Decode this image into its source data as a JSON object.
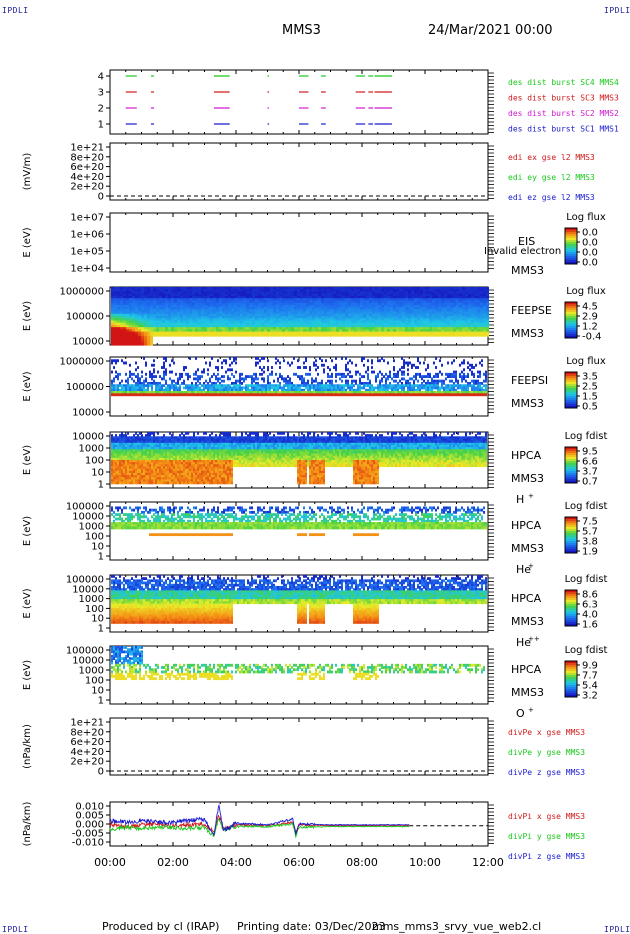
{
  "corner_logo": "IPDLI",
  "header": {
    "mission": "MMS3",
    "date": "24/Mar/2021 00:00"
  },
  "footer": {
    "produced_by": "Produced by cl (IRAP)",
    "printing_date": "Printing date: 03/Dec/2023",
    "filename": "mms_mms3_srvy_vue_web2.cl"
  },
  "colors": {
    "mms1": "#1a1ad0",
    "mms2": "#d01ad0",
    "mms3": "#d01a1a",
    "mms4": "#1ac81a",
    "x": "#d01a1a",
    "y": "#1ac81a",
    "z": "#1a1ad0"
  },
  "chart_data": [
    {
      "type": "line",
      "panel": "burst-availability",
      "ylim": [
        0.5,
        4.5
      ],
      "yticks": [
        "1",
        "2",
        "3",
        "4"
      ],
      "ylabel": "",
      "series": [
        {
          "name": "des dist burst SC1 MMS1",
          "level": 1,
          "intervals_hours": [
            [
              0.5,
              0.85
            ],
            [
              1.3,
              1.4
            ],
            [
              3.3,
              3.8
            ],
            [
              5.0,
              5.05
            ],
            [
              6.0,
              6.3
            ],
            [
              6.7,
              6.85
            ],
            [
              7.8,
              8.1
            ],
            [
              8.2,
              8.35
            ],
            [
              8.4,
              8.95
            ]
          ]
        },
        {
          "name": "des dist burst SC2 MMS2",
          "level": 2,
          "intervals_hours": [
            [
              0.5,
              0.85
            ],
            [
              1.3,
              1.4
            ],
            [
              3.3,
              3.8
            ],
            [
              5.0,
              5.05
            ],
            [
              6.0,
              6.3
            ],
            [
              6.7,
              6.85
            ],
            [
              7.8,
              8.1
            ],
            [
              8.2,
              8.35
            ],
            [
              8.4,
              8.95
            ]
          ]
        },
        {
          "name": "des dist burst SC3 MMS3",
          "level": 3,
          "intervals_hours": [
            [
              0.5,
              0.85
            ],
            [
              1.3,
              1.4
            ],
            [
              3.3,
              3.8
            ],
            [
              5.0,
              5.05
            ],
            [
              6.0,
              6.3
            ],
            [
              6.7,
              6.85
            ],
            [
              7.8,
              8.1
            ],
            [
              8.2,
              8.35
            ],
            [
              8.4,
              8.95
            ]
          ]
        },
        {
          "name": "des dist burst SC4 MMS4",
          "level": 4,
          "intervals_hours": [
            [
              0.5,
              0.85
            ],
            [
              1.3,
              1.4
            ],
            [
              3.3,
              3.8
            ],
            [
              5.0,
              5.05
            ],
            [
              6.0,
              6.3
            ],
            [
              6.7,
              6.85
            ],
            [
              7.8,
              8.1
            ],
            [
              8.2,
              8.35
            ],
            [
              8.4,
              8.95
            ]
          ]
        }
      ]
    },
    {
      "type": "line",
      "panel": "edi-e-field",
      "ylabel": "(mV/m)",
      "yticks": [
        "1e+21",
        "8e+20",
        "6e+20",
        "4e+20",
        "2e+20",
        "0"
      ],
      "ylim": [
        -1e+20,
        1.1e+21
      ],
      "zero_line": true,
      "series": [
        {
          "name": "edi ex gse l2 MMS3",
          "values": []
        },
        {
          "name": "edi ey gse l2 MMS3",
          "values": []
        },
        {
          "name": "edi ez gse l2 MMS3",
          "values": []
        }
      ]
    },
    {
      "type": "heatmap",
      "panel": "eis",
      "ylabel": "E (eV)",
      "ytype": "log",
      "yticks": [
        "1e+07",
        "1e+06",
        "1e+05",
        "1e+04"
      ],
      "instrument": "EIS",
      "spacecraft": "MMS3",
      "note": "Invalid electron to",
      "colorbar": {
        "title": "Log flux",
        "ticks": [
          "0.0",
          "0.0",
          "0.0",
          "0.0"
        ]
      },
      "values": []
    },
    {
      "type": "heatmap",
      "panel": "feeps-electron",
      "ylabel": "E (eV)",
      "ytype": "log",
      "yticks": [
        "1000000",
        "100000",
        "10000"
      ],
      "instrument": "FEEPSE",
      "spacecraft": "MMS3",
      "colorbar": {
        "title": "Log flux",
        "ticks": [
          "4.5",
          "2.9",
          "1.2",
          "-0.4"
        ],
        "range": [
          -0.4,
          4.5
        ]
      },
      "band_profile": {
        "top": 1.0,
        "mid": 1.9,
        "low": 3.2,
        "floor": 4.3
      },
      "early_enhancement_hours": [
        0.0,
        1.3
      ]
    },
    {
      "type": "heatmap",
      "panel": "feeps-ion",
      "ylabel": "E (eV)",
      "ytype": "log",
      "yticks": [
        "1000000",
        "100000",
        "10000"
      ],
      "instrument": "FEEPSI",
      "spacecraft": "MMS3",
      "colorbar": {
        "title": "Log flux",
        "ticks": [
          "3.5",
          "2.5",
          "1.5",
          "0.5"
        ],
        "range": [
          0.5,
          3.5
        ]
      }
    },
    {
      "type": "heatmap",
      "panel": "hpca-h",
      "ylabel": "E (eV)",
      "ytype": "log",
      "yticks": [
        "10000",
        "1000",
        "100",
        "10",
        "1"
      ],
      "instrument": "HPCA",
      "spacecraft": "MMS3",
      "species": "H",
      "species_charge": "+",
      "colorbar": {
        "title": "Log fdist",
        "ticks": [
          "9.5",
          "6.6",
          "3.7",
          "0.7"
        ],
        "range": [
          0.7,
          9.5
        ]
      }
    },
    {
      "type": "heatmap",
      "panel": "hpca-he+",
      "ylabel": "E (eV)",
      "ytype": "log",
      "yticks": [
        "100000",
        "10000",
        "1000",
        "100",
        "10",
        "1"
      ],
      "instrument": "HPCA",
      "spacecraft": "MMS3",
      "species": "He",
      "species_charge": "+",
      "colorbar": {
        "title": "Log fdist",
        "ticks": [
          "7.5",
          "5.7",
          "3.8",
          "1.9"
        ],
        "range": [
          1.9,
          7.5
        ]
      }
    },
    {
      "type": "heatmap",
      "panel": "hpca-he++",
      "ylabel": "E (eV)",
      "ytype": "log",
      "yticks": [
        "100000",
        "10000",
        "1000",
        "100",
        "10",
        "1"
      ],
      "instrument": "HPCA",
      "spacecraft": "MMS3",
      "species": "He",
      "species_charge": "++",
      "colorbar": {
        "title": "Log fdist",
        "ticks": [
          "8.6",
          "6.3",
          "4.0",
          "1.6"
        ],
        "range": [
          1.6,
          8.6
        ]
      }
    },
    {
      "type": "heatmap",
      "panel": "hpca-o",
      "ylabel": "E (eV)",
      "ytype": "log",
      "yticks": [
        "100000",
        "10000",
        "1000",
        "100",
        "10",
        "1"
      ],
      "instrument": "HPCA",
      "spacecraft": "MMS3",
      "species": "O",
      "species_charge": "+",
      "colorbar": {
        "title": "Log fdist",
        "ticks": [
          "9.9",
          "7.7",
          "5.4",
          "3.2"
        ],
        "range": [
          3.2,
          9.9
        ]
      }
    },
    {
      "type": "line",
      "panel": "divpe",
      "ylabel": "(nPa/km)",
      "yticks": [
        "1e+21",
        "8e+20",
        "6e+20",
        "4e+20",
        "2e+20",
        "0"
      ],
      "ylim": [
        -1e+20,
        1.1e+21
      ],
      "zero_line": true,
      "series": [
        {
          "name": "divPe x gse MMS3",
          "values": []
        },
        {
          "name": "divPe y gse MMS3",
          "values": []
        },
        {
          "name": "divPe z gse MMS3",
          "values": []
        }
      ]
    },
    {
      "type": "line",
      "panel": "divpi",
      "ylabel": "(nPa/km)",
      "yticks": [
        "0.010",
        "0.005",
        "0.000",
        "-0.005",
        "-0.010"
      ],
      "ylim": [
        -0.012,
        0.014
      ],
      "zero_line": true,
      "data_end_hour": 9.5,
      "series": [
        {
          "name": "divPi x gse MMS3",
          "x": [
            0,
            0.5,
            1,
            1.5,
            2,
            2.5,
            3,
            3.3,
            3.45,
            3.6,
            4,
            5,
            5.8,
            5.9,
            6,
            7,
            8,
            9,
            9.5
          ],
          "values": [
            0.001,
            -0.001,
            0.0005,
            0.001,
            0,
            0.0005,
            0.001,
            -0.004,
            0.006,
            -0.002,
            0.0005,
            0,
            0.002,
            -0.004,
            0.0005,
            0,
            0,
            0,
            0
          ]
        },
        {
          "name": "divPi y gse MMS3",
          "x": [
            0,
            0.5,
            1,
            1.5,
            2,
            2.5,
            3,
            3.3,
            3.45,
            3.6,
            4,
            5,
            5.8,
            5.9,
            6,
            7,
            8,
            9,
            9.5
          ],
          "values": [
            -0.002,
            -0.001,
            -0.0015,
            -0.001,
            -0.001,
            -0.0015,
            -0.001,
            -0.006,
            0.004,
            -0.003,
            -0.0005,
            -0.0005,
            0.001,
            -0.006,
            -0.001,
            -0.0005,
            -0.0005,
            -0.0005,
            -0.0005
          ]
        },
        {
          "name": "divPi z gse MMS3",
          "x": [
            0,
            0.5,
            1,
            1.5,
            2,
            2.5,
            3,
            3.3,
            3.45,
            3.6,
            4,
            5,
            5.8,
            5.9,
            6,
            7,
            8,
            9,
            9.5
          ],
          "values": [
            0.003,
            0.002,
            0.003,
            0.002,
            0.002,
            0.003,
            0.004,
            -0.006,
            0.012,
            -0.003,
            0.0015,
            0.0005,
            0.004,
            -0.005,
            0.001,
            0.0005,
            0.0005,
            0.0005,
            0.0005
          ]
        }
      ]
    }
  ],
  "xaxis": {
    "ticks": [
      "00:00",
      "02:00",
      "04:00",
      "06:00",
      "08:00",
      "10:00",
      "12:00"
    ],
    "xlim_hours": [
      0,
      12
    ]
  }
}
